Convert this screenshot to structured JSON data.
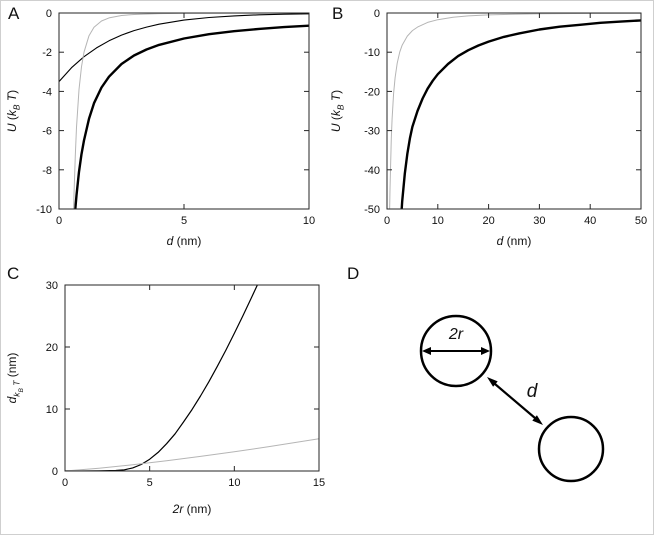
{
  "panel_labels": [
    "A",
    "B",
    "C",
    "D"
  ],
  "diagram": {
    "radius_label": "2r",
    "distance_label": "d"
  },
  "colors": {
    "curve_black": "#000000",
    "curve_gray": "#b5b5b5",
    "axis": "#262626"
  },
  "chart_data": [
    {
      "type": "line",
      "panel": "A",
      "title": "",
      "xlabel": "d (nm)",
      "ylabel": "U (k_B T)",
      "xlabel_segs": [
        {
          "t": "d",
          "i": true
        },
        {
          "t": " (nm)"
        }
      ],
      "ylabel_segs": [
        {
          "t": "U",
          "i": true
        },
        {
          "t": " ("
        },
        {
          "t": "k",
          "i": true
        },
        {
          "t": "B",
          "i": true,
          "sub": 1
        },
        {
          "t": " T",
          "i": true
        },
        {
          "t": ")"
        }
      ],
      "xlim": [
        0,
        10
      ],
      "ylim": [
        -10,
        0
      ],
      "xticks": [
        0,
        5,
        10
      ],
      "yticks": [
        0,
        -2,
        -4,
        -6,
        -8,
        -10
      ],
      "grid": false,
      "series": [
        {
          "name": "curve-thick",
          "color": "#000000",
          "width": 2.4,
          "points": [
            [
              0.6,
              -10.5
            ],
            [
              0.65,
              -10
            ],
            [
              0.7,
              -9.3
            ],
            [
              0.8,
              -8.1
            ],
            [
              0.9,
              -7.2
            ],
            [
              1,
              -6.5
            ],
            [
              1.2,
              -5.4
            ],
            [
              1.4,
              -4.6
            ],
            [
              1.7,
              -3.8
            ],
            [
              2,
              -3.25
            ],
            [
              2.5,
              -2.6
            ],
            [
              3,
              -2.17
            ],
            [
              3.5,
              -1.86
            ],
            [
              4,
              -1.63
            ],
            [
              5,
              -1.3
            ],
            [
              6,
              -1.08
            ],
            [
              7,
              -0.93
            ],
            [
              8,
              -0.81
            ],
            [
              9,
              -0.72
            ],
            [
              10,
              -0.65
            ]
          ]
        },
        {
          "name": "curve-thin",
          "color": "#000000",
          "width": 1.1,
          "points": [
            [
              0,
              -3.5
            ],
            [
              0.5,
              -2.79
            ],
            [
              1,
              -2.23
            ],
            [
              1.5,
              -1.78
            ],
            [
              2,
              -1.42
            ],
            [
              2.5,
              -1.13
            ],
            [
              3,
              -0.9
            ],
            [
              3.5,
              -0.72
            ],
            [
              4,
              -0.57
            ],
            [
              5,
              -0.36
            ],
            [
              6,
              -0.23
            ],
            [
              7,
              -0.15
            ],
            [
              8,
              -0.09
            ],
            [
              9,
              -0.06
            ],
            [
              10,
              -0.04
            ]
          ]
        },
        {
          "name": "curve-gray",
          "color": "#b5b5b5",
          "width": 1,
          "points": [
            [
              0.57,
              -10.8
            ],
            [
              0.6,
              -9.26
            ],
            [
              0.65,
              -7.28
            ],
            [
              0.7,
              -5.83
            ],
            [
              0.8,
              -3.91
            ],
            [
              0.9,
              -2.74
            ],
            [
              1,
              -2
            ],
            [
              1.2,
              -1.16
            ],
            [
              1.4,
              -0.73
            ],
            [
              1.7,
              -0.41
            ],
            [
              2,
              -0.25
            ],
            [
              2.5,
              -0.13
            ],
            [
              3,
              -0.074
            ],
            [
              4,
              -0.031
            ],
            [
              5,
              -0.016
            ],
            [
              7,
              -0.006
            ],
            [
              10,
              -0.002
            ]
          ]
        }
      ]
    },
    {
      "type": "line",
      "panel": "B",
      "title": "",
      "xlabel": "d (nm)",
      "ylabel": "U (k_B T)",
      "xlabel_segs": [
        {
          "t": "d",
          "i": true
        },
        {
          "t": " (nm)"
        }
      ],
      "ylabel_segs": [
        {
          "t": "U",
          "i": true
        },
        {
          "t": " ("
        },
        {
          "t": "k",
          "i": true
        },
        {
          "t": "B",
          "i": true,
          "sub": 1
        },
        {
          "t": " T",
          "i": true
        },
        {
          "t": ")"
        }
      ],
      "xlim": [
        0,
        50
      ],
      "ylim": [
        -50,
        0
      ],
      "xticks": [
        0,
        10,
        20,
        30,
        40,
        50
      ],
      "yticks": [
        0,
        -10,
        -20,
        -30,
        -40,
        -50
      ],
      "grid": false,
      "series": [
        {
          "name": "curve-thick",
          "color": "#000000",
          "width": 2.4,
          "points": [
            [
              2.8,
              -52
            ],
            [
              3,
              -48
            ],
            [
              3.5,
              -41
            ],
            [
              4,
              -36
            ],
            [
              4.5,
              -32
            ],
            [
              5,
              -29
            ],
            [
              6,
              -25
            ],
            [
              7,
              -21.8
            ],
            [
              8,
              -19.3
            ],
            [
              9,
              -17.3
            ],
            [
              10,
              -15.6
            ],
            [
              12,
              -13
            ],
            [
              14,
              -11
            ],
            [
              16,
              -9.5
            ],
            [
              18,
              -8.3
            ],
            [
              20,
              -7.3
            ],
            [
              23,
              -6.1
            ],
            [
              26,
              -5.2
            ],
            [
              30,
              -4.2
            ],
            [
              34,
              -3.5
            ],
            [
              38,
              -3.0
            ],
            [
              42,
              -2.5
            ],
            [
              46,
              -2.2
            ],
            [
              50,
              -1.9
            ]
          ]
        },
        {
          "name": "curve-gray",
          "color": "#b5b5b5",
          "width": 1,
          "points": [
            [
              0.5,
              -52
            ],
            [
              0.6,
              -45
            ],
            [
              0.7,
              -39
            ],
            [
              0.85,
              -32
            ],
            [
              1,
              -27
            ],
            [
              1.3,
              -20.5
            ],
            [
              1.6,
              -16.5
            ],
            [
              2,
              -12.8
            ],
            [
              2.5,
              -10
            ],
            [
              3,
              -8.2
            ],
            [
              4,
              -5.9
            ],
            [
              5,
              -4.5
            ],
            [
              6,
              -3.6
            ],
            [
              8,
              -2.4
            ],
            [
              10,
              -1.7
            ],
            [
              13,
              -1.1
            ],
            [
              16,
              -0.75
            ],
            [
              20,
              -0.48
            ],
            [
              25,
              -0.3
            ],
            [
              30,
              -0.19
            ],
            [
              40,
              -0.09
            ],
            [
              50,
              -0.04
            ]
          ]
        }
      ]
    },
    {
      "type": "line",
      "panel": "C",
      "title": "",
      "xlabel": "2r (nm)",
      "ylabel": "d_kBT (nm)",
      "xlabel_segs": [
        {
          "t": "2r",
          "i": true
        },
        {
          "t": " (nm)"
        }
      ],
      "ylabel_segs": [
        {
          "t": "d",
          "i": true
        },
        {
          "t": "k",
          "i": true,
          "sub": 1
        },
        {
          "t": "B",
          "i": true,
          "sub": 2
        },
        {
          "t": " T",
          "i": true,
          "sub": 1
        },
        {
          "t": " (nm)"
        }
      ],
      "xlim": [
        0,
        15
      ],
      "ylim": [
        0,
        30
      ],
      "xticks": [
        0,
        5,
        10,
        15
      ],
      "yticks": [
        0,
        10,
        20,
        30
      ],
      "grid": false,
      "series": [
        {
          "name": "curve-black",
          "color": "#000000",
          "width": 1.2,
          "points": [
            [
              0,
              0
            ],
            [
              1,
              0
            ],
            [
              2,
              0.02
            ],
            [
              3,
              0.08
            ],
            [
              3.5,
              0.2
            ],
            [
              4,
              0.5
            ],
            [
              4.5,
              1.05
            ],
            [
              5,
              1.9
            ],
            [
              5.5,
              3
            ],
            [
              6,
              4.4
            ],
            [
              6.5,
              6
            ],
            [
              7,
              7.9
            ],
            [
              7.5,
              9.9
            ],
            [
              8,
              12.1
            ],
            [
              8.5,
              14.4
            ],
            [
              9,
              16.9
            ],
            [
              9.5,
              19.5
            ],
            [
              10,
              22.2
            ],
            [
              10.5,
              25
            ],
            [
              11,
              27.9
            ],
            [
              11.5,
              30.8
            ]
          ]
        },
        {
          "name": "curve-gray",
          "color": "#b5b5b5",
          "width": 1,
          "points": [
            [
              0,
              0
            ],
            [
              2,
              0.45
            ],
            [
              4,
              1
            ],
            [
              6,
              1.65
            ],
            [
              8,
              2.35
            ],
            [
              10,
              3.1
            ],
            [
              12,
              3.9
            ],
            [
              15,
              5.2
            ]
          ]
        }
      ]
    }
  ]
}
